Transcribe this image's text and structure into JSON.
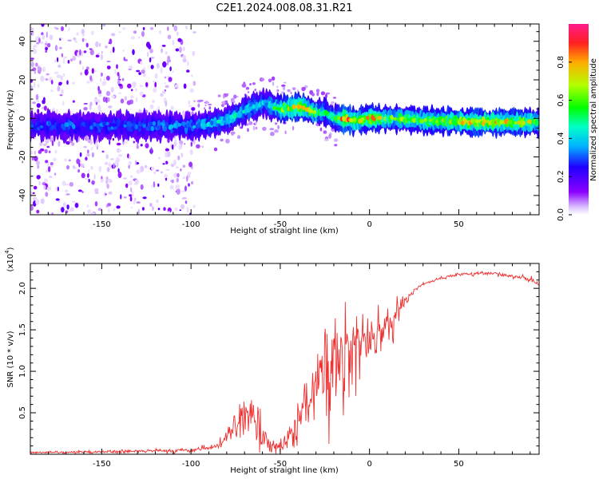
{
  "figure_title": "C2E1.2024.008.08.31.R21",
  "colorbar": {
    "label": "Normalized spectral amplitude",
    "ticks": [
      "0.0",
      "0.2",
      "0.4",
      "0.6",
      "0.8"
    ],
    "tick_values": [
      0.0,
      0.2,
      0.4,
      0.6,
      0.8
    ],
    "range": [
      0,
      1
    ],
    "colors": [
      "#ffffff",
      "#8a00ff",
      "#2400ff",
      "#00b4ff",
      "#00ffb4",
      "#00ff00",
      "#b4ff00",
      "#ffaa00",
      "#ff2020",
      "#ff1a8c"
    ]
  },
  "chart_data": [
    {
      "type": "heatmap",
      "title": "C2E1.2024.008.08.31.R21",
      "xlabel": "Height of straight line (km)",
      "ylabel": "Frequency (Hz)",
      "xlim": [
        -190,
        95
      ],
      "ylim": [
        -50,
        49
      ],
      "xticks": [
        -150,
        -100,
        -50,
        0,
        50
      ],
      "xtick_labels": [
        "-150",
        "-100",
        "-50",
        "0",
        "50"
      ],
      "yticks": [
        -40,
        -20,
        0,
        20,
        40
      ],
      "ytick_labels": [
        "-40",
        "-20",
        "0",
        "20",
        "40"
      ],
      "ridge": {
        "x": [
          -190,
          -160,
          -130,
          -110,
          -100,
          -90,
          -80,
          -72,
          -65,
          -58,
          -55,
          -50,
          -45,
          -40,
          -35,
          -30,
          -25,
          -20,
          -15,
          -10,
          -5,
          0,
          10,
          30,
          60,
          90,
          95
        ],
        "y": [
          -4,
          -4,
          -4,
          -4,
          -4,
          -3,
          -1,
          3,
          6,
          8,
          6,
          5,
          5,
          6,
          5,
          3,
          3,
          0,
          0,
          -1,
          -1,
          0,
          0,
          -1,
          -2,
          -2,
          -2
        ],
        "amplitude": [
          0.3,
          0.3,
          0.3,
          0.35,
          0.35,
          0.4,
          0.45,
          0.45,
          0.45,
          0.4,
          0.5,
          0.6,
          0.7,
          0.8,
          0.7,
          0.6,
          0.5,
          0.5,
          0.85,
          0.8,
          0.7,
          0.8,
          0.6,
          0.6,
          0.75,
          0.7,
          0.5
        ]
      },
      "noise_region": [
        -190,
        -98
      ]
    },
    {
      "type": "line",
      "xlabel": "Height of straight line (km)",
      "ylabel": "SNR (10 * v/v)",
      "y_multiplier": "(x10",
      "y_multiplier_exp": "4",
      "y_multiplier_close": ")",
      "xlim": [
        -190,
        95
      ],
      "ylim": [
        0,
        2.3
      ],
      "xticks": [
        -150,
        -100,
        -50,
        0,
        50
      ],
      "xtick_labels": [
        "-150",
        "-100",
        "-50",
        "0",
        "50"
      ],
      "yticks": [
        0.5,
        1.0,
        1.5,
        2.0
      ],
      "ytick_labels": [
        "0.5",
        "1.0",
        "1.5",
        "2.0"
      ],
      "series": [
        {
          "name": "SNR",
          "color": "#ee3030",
          "x": [
            -190,
            -150,
            -120,
            -100,
            -90,
            -85,
            -80,
            -75,
            -70,
            -65,
            -60,
            -55,
            -50,
            -45,
            -40,
            -35,
            -30,
            -25,
            -20,
            -15,
            -10,
            -5,
            0,
            5,
            10,
            15,
            20,
            25,
            30,
            40,
            50,
            60,
            70,
            80,
            90,
            95
          ],
          "y": [
            0.02,
            0.03,
            0.04,
            0.05,
            0.07,
            0.12,
            0.2,
            0.35,
            0.45,
            0.5,
            0.3,
            0.12,
            0.1,
            0.2,
            0.35,
            0.6,
            0.8,
            1.0,
            1.15,
            1.2,
            1.25,
            1.3,
            1.35,
            1.45,
            1.55,
            1.65,
            1.85,
            1.97,
            2.05,
            2.12,
            2.17,
            2.18,
            2.18,
            2.15,
            2.1,
            2.05
          ],
          "noise_amplitude": [
            0.01,
            0.02,
            0.02,
            0.02,
            0.03,
            0.05,
            0.1,
            0.2,
            0.25,
            0.3,
            0.25,
            0.1,
            0.08,
            0.15,
            0.25,
            0.4,
            0.5,
            0.6,
            0.6,
            0.5,
            0.45,
            0.35,
            0.3,
            0.25,
            0.2,
            0.12,
            0.05,
            0.03,
            0.02,
            0.02,
            0.02,
            0.02,
            0.02,
            0.02,
            0.03,
            0.03
          ]
        }
      ]
    }
  ]
}
